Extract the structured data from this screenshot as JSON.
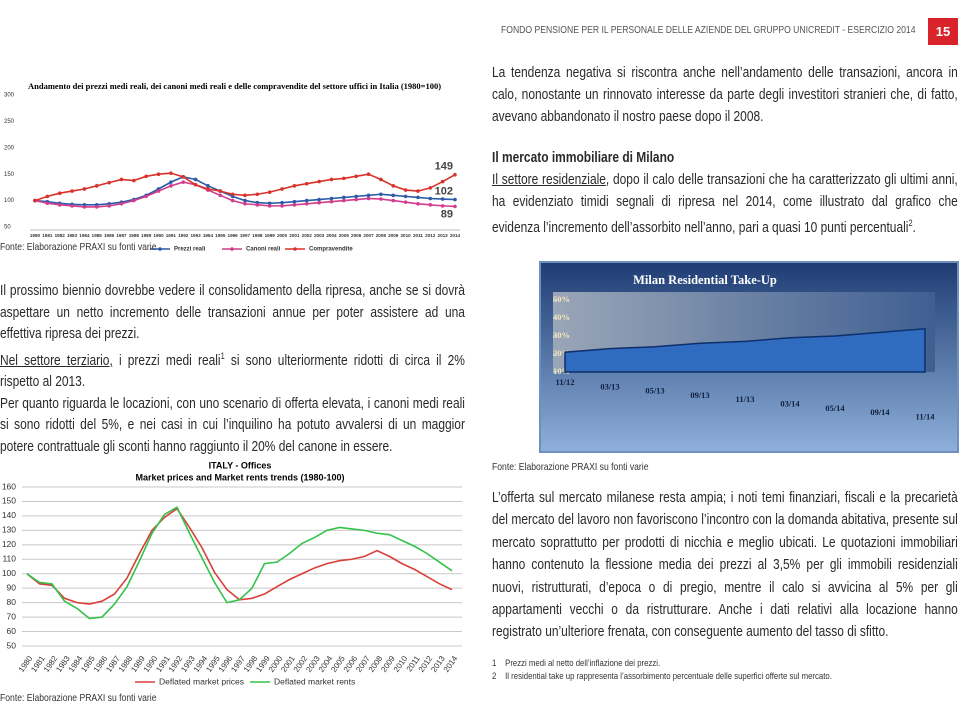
{
  "header": {
    "title": "FONDO PENSIONE PER IL PERSONALE DELLE AZIENDE DEL GRUPPO UNICREDIT - ESERCIZIO 2014",
    "page": "15"
  },
  "chart_data": [
    {
      "type": "line",
      "title": "Andamento dei prezzi medi reali, dei canoni medi reali e delle compravendite del settore uffici in Italia (1980=100)",
      "categories": [
        "1980",
        "1981",
        "1982",
        "1983",
        "1984",
        "1985",
        "1986",
        "1987",
        "1988",
        "1989",
        "1990",
        "1991",
        "1992",
        "1993",
        "1994",
        "1995",
        "1996",
        "1997",
        "1998",
        "1999",
        "2000",
        "2001",
        "2002",
        "2003",
        "2004",
        "2005",
        "2006",
        "2007",
        "2008",
        "2009",
        "2010",
        "2011",
        "2012",
        "2013",
        "2014"
      ],
      "series": [
        {
          "name": "Prezzi reali",
          "color": "#2b5aa6",
          "values": [
            100,
            98,
            95,
            93,
            92,
            92,
            94,
            97,
            102,
            110,
            122,
            135,
            145,
            140,
            128,
            118,
            108,
            100,
            96,
            95,
            96,
            98,
            100,
            102,
            104,
            106,
            108,
            110,
            112,
            110,
            108,
            106,
            104,
            103,
            102
          ]
        },
        {
          "name": "Canoni reali",
          "color": "#d23c8c",
          "values": [
            100,
            95,
            92,
            90,
            88,
            88,
            90,
            94,
            100,
            108,
            118,
            128,
            135,
            130,
            120,
            110,
            100,
            94,
            92,
            90,
            90,
            92,
            94,
            96,
            98,
            100,
            102,
            104,
            103,
            100,
            97,
            94,
            92,
            90,
            89
          ]
        },
        {
          "name": "Compravendite",
          "color": "#d9322b",
          "values": [
            100,
            108,
            114,
            118,
            122,
            128,
            134,
            140,
            138,
            146,
            150,
            152,
            145,
            130,
            122,
            118,
            112,
            110,
            112,
            116,
            122,
            128,
            132,
            136,
            140,
            142,
            146,
            150,
            140,
            128,
            120,
            118,
            124,
            136,
            149
          ]
        }
      ],
      "ylim": [
        50,
        300
      ],
      "yticks": [
        50,
        100,
        150,
        200,
        250,
        300
      ],
      "markers": true,
      "last_value_labels": true,
      "legend": "bottom"
    },
    {
      "type": "area",
      "title": "Milan Residential Take-Up",
      "categories": [
        "11/12",
        "03/13",
        "05/13",
        "09/13",
        "11/13",
        "03/14",
        "05/14",
        "09/14",
        "11/14"
      ],
      "values": [
        21,
        23,
        24,
        26,
        27,
        29,
        30,
        32,
        34
      ],
      "color": "#2f6cc0",
      "ylim": [
        10,
        50
      ],
      "yticks": [
        {
          "value": 10,
          "label": "10%"
        },
        {
          "value": 20,
          "label": "20%"
        },
        {
          "value": 30,
          "label": "30%"
        },
        {
          "value": 40,
          "label": "40%"
        },
        {
          "value": 50,
          "label": "50%"
        }
      ]
    },
    {
      "type": "line",
      "title": "ITALY - Offices",
      "subtitle": "Market prices and Market rents trends (1980-100)",
      "categories": [
        "1980",
        "1981",
        "1982",
        "1983",
        "1984",
        "1985",
        "1986",
        "1987",
        "1988",
        "1989",
        "1990",
        "1991",
        "1992",
        "1993",
        "1994",
        "1995",
        "1996",
        "1997",
        "1998",
        "1999",
        "2000",
        "2001",
        "2002",
        "2003",
        "2004",
        "2005",
        "2006",
        "2007",
        "2008",
        "2009",
        "2010",
        "2011",
        "2012",
        "2013",
        "2014"
      ],
      "series": [
        {
          "name": "Deflated market prices",
          "color": "#d9403a",
          "values": [
            100,
            93,
            92,
            83,
            80,
            79,
            81,
            86,
            97,
            114,
            130,
            139,
            145,
            132,
            118,
            101,
            89,
            82,
            83,
            86,
            91,
            96,
            100,
            104,
            107,
            109,
            110,
            112,
            116,
            112,
            107,
            103,
            98,
            93,
            89
          ]
        },
        {
          "name": "Deflated market rents",
          "color": "#33c24a",
          "values": [
            100,
            94,
            93,
            81,
            76,
            69,
            70,
            79,
            91,
            109,
            128,
            141,
            146,
            128,
            111,
            94,
            80,
            82,
            90,
            107,
            108,
            114,
            121,
            125,
            130,
            132,
            131,
            130,
            128,
            127,
            123,
            119,
            114,
            108,
            102
          ]
        }
      ],
      "ylim": [
        50,
        160
      ],
      "yticks": [
        50,
        60,
        70,
        80,
        90,
        100,
        110,
        120,
        130,
        140,
        150,
        160
      ],
      "grid": true,
      "legend": "bottom"
    }
  ],
  "sources": [
    "Fonte: Elaborazione PRAXI su fonti varie",
    "Fonte: Elaborazione PRAXI su fonti varie",
    "Fonte: Elaborazione PRAXI su fonti varie"
  ],
  "right_top": {
    "p1": "La tendenza negativa si riscontra anche nell’andamento delle transazioni, ancora in calo, nonostante un rinnovato interesse da parte degli investitori stranieri che, di fatto, avevano abbandonato il nostro paese dopo il 2008.",
    "heading": "Il mercato immobiliare di Milano",
    "p2": {
      "underlined": "Il settore residenziale",
      "text": ", dopo il calo delle transazioni che ha caratterizzato gli ultimi anni, ha evidenziato timidi segnali di ripresa nel 2014, come illustrato dal grafico che evidenza l’incremento dell’assorbito nell’anno, pari a quasi 10 punti percentuali",
      "sup": "2",
      "tail": "."
    }
  },
  "left_text": {
    "p1": "Il prossimo biennio dovrebbe vedere il consolidamento della ripresa, anche se si dovrà aspettare un netto incremento delle transazioni annue per poter assistere ad una effettiva ripresa dei prezzi.",
    "p2": {
      "underlined": "Nel settore terziario,",
      "text": " i prezzi medi reali",
      "sup": "1",
      "tail": " si sono ulteriormente ridotti di circa il 2% rispetto al 2013."
    },
    "p3": "Per quanto riguarda le locazioni, con uno scenario di offerta elevata, i canoni medi reali si sono ridotti del 5%, e nei casi in cui l’inquilino ha potuto avvalersi di un maggior potere contrattuale gli sconti hanno raggiunto il 20% del canone in essere."
  },
  "right_bottom": {
    "p1": "L’offerta sul mercato milanese resta ampia; i noti temi finanziari, fiscali e la precarietà del mercato del lavoro non favoriscono l’incontro con la domanda abitativa, presente sul mercato soprattutto per prodotti di nicchia e meglio ubicati. Le quotazioni immobiliari hanno contenuto la flessione media dei prezzi al 3,5% per gli immobili residenziali nuovi, ristrutturati, d’epoca o di pregio, mentre il calo si avvicina al 5% per gli appartamenti vecchi o da ristrutturare. Anche i dati relativi alla locazione hanno registrato un’ulteriore frenata, con conseguente aumento del tasso di sfitto."
  },
  "footnotes": [
    {
      "num": "1",
      "text": "Prezzi medi al netto dell’inflazione dei prezzi."
    },
    {
      "num": "2",
      "text": "Il residential take up rappresenta l’assorbimento percentuale delle superfici offerte sul mercato."
    }
  ]
}
